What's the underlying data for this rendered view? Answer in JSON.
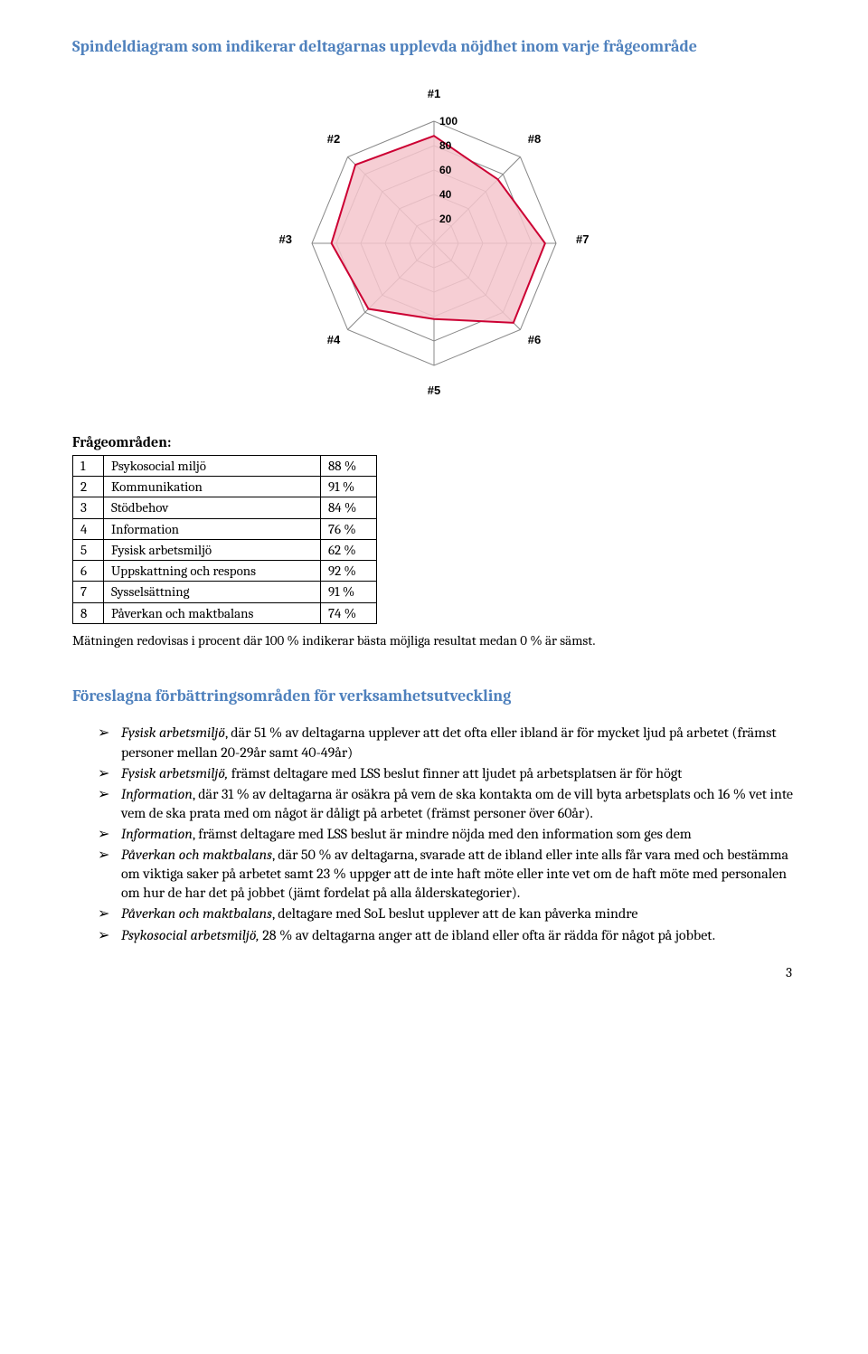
{
  "title1": "Spindeldiagram som indikerar deltagarnas upplevda nöjdhet inom varje frågeområde",
  "chart": {
    "type": "radar",
    "axes": [
      "#1",
      "#2",
      "#3",
      "#4",
      "#5",
      "#6",
      "#7",
      "#8"
    ],
    "values": [
      88,
      91,
      84,
      76,
      62,
      92,
      91,
      74
    ],
    "rings": [
      20,
      40,
      60,
      80,
      100
    ],
    "max": 100,
    "line_color": "#cc0033",
    "fill_color": "#f4c6cc",
    "fill_opacity": 0.85,
    "grid_color": "#888888",
    "axis_line_color": "#888888",
    "axis_label_color": "#000000",
    "ring_label_color": "#000000",
    "background_color": "#ffffff",
    "line_width": 2
  },
  "fs_label": "Frågeområden:",
  "table": {
    "rows": [
      {
        "n": "1",
        "name": "Psykosocial miljö",
        "val": "88 %"
      },
      {
        "n": "2",
        "name": "Kommunikation",
        "val": "91 %"
      },
      {
        "n": "3",
        "name": "Stödbehov",
        "val": "84 %"
      },
      {
        "n": "4",
        "name": "Information",
        "val": "76 %"
      },
      {
        "n": "5",
        "name": "Fysisk arbetsmiljö",
        "val": "62 %"
      },
      {
        "n": "6",
        "name": "Uppskattning och respons",
        "val": "92 %"
      },
      {
        "n": "7",
        "name": "Sysselsättning",
        "val": "91 %"
      },
      {
        "n": "8",
        "name": "Påverkan och maktbalans",
        "val": "74 %"
      }
    ]
  },
  "note": "Mätningen redovisas i procent där 100 % indikerar bästa möjliga resultat medan 0 % är sämst.",
  "title2": "Föreslagna förbättringsområden för verksamhetsutveckling",
  "bullets": [
    {
      "lead": "Fysisk arbetsmiljö",
      "rest": ", där 51 % av deltagarna upplever att det ofta eller ibland är för mycket ljud på arbetet (främst personer mellan 20-29år samt 40-49år)"
    },
    {
      "lead": "Fysisk arbetsmiljö,",
      "rest": " främst deltagare med LSS beslut finner att ljudet på arbetsplatsen är för högt"
    },
    {
      "lead": "Information",
      "rest": ", där 31 % av deltagarna är osäkra på vem de ska kontakta om de vill byta arbetsplats och 16 % vet inte vem de ska prata med om något är dåligt på arbetet (främst personer över 60år)."
    },
    {
      "lead": "Information",
      "rest": ", främst deltagare med LSS beslut är mindre nöjda med den information som ges dem"
    },
    {
      "lead": "Påverkan och maktbalans",
      "rest": ", där 50 % av deltagarna, svarade att de ibland eller inte alls får vara med och bestämma om viktiga saker på arbetet samt 23 % uppger att de inte haft möte eller inte vet om de haft möte med personalen om hur de har det på jobbet (jämt fordelat på alla ålderskategorier)."
    },
    {
      "lead": "Påverkan och maktbalans",
      "rest": ", deltagare med SoL beslut upplever att de kan påverka mindre"
    },
    {
      "lead": "Psykosocial arbetsmiljö,",
      "rest": " 28 % av deltagarna anger att de ibland eller ofta är rädda för något på jobbet."
    }
  ],
  "page_num": "3"
}
